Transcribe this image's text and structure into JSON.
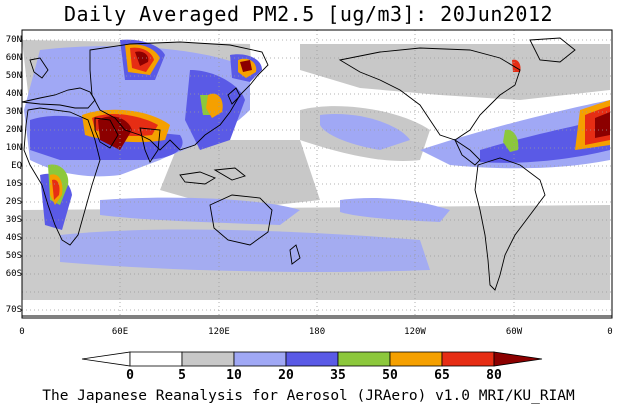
{
  "title": "Daily Averaged PM2.5 [ug/m3]: 20Jun2012",
  "footer": "The Japanese Reanalysis for Aerosol (JRAero) v1.0 MRI/KU_RIAM",
  "lat_labels": [
    "70N",
    "60N",
    "50N",
    "40N",
    "30N",
    "20N",
    "10N",
    "EQ",
    "10S",
    "20S",
    "30S",
    "40S",
    "50S",
    "60S",
    "70S"
  ],
  "lon_labels": [
    "0",
    "60E",
    "120E",
    "180",
    "120W",
    "60W",
    "0"
  ],
  "colorbar": {
    "labels": [
      "0",
      "5",
      "10",
      "20",
      "35",
      "50",
      "65",
      "80"
    ],
    "colors": [
      "#ffffff",
      "#c8c8c8",
      "#a0a8f5",
      "#5a5ae6",
      "#8cc83c",
      "#f5a000",
      "#e62d14",
      "#8c0000"
    ]
  },
  "theme": {
    "ocean": "#ffffff",
    "coast": "#000000",
    "grid": "#9a9a9a"
  }
}
